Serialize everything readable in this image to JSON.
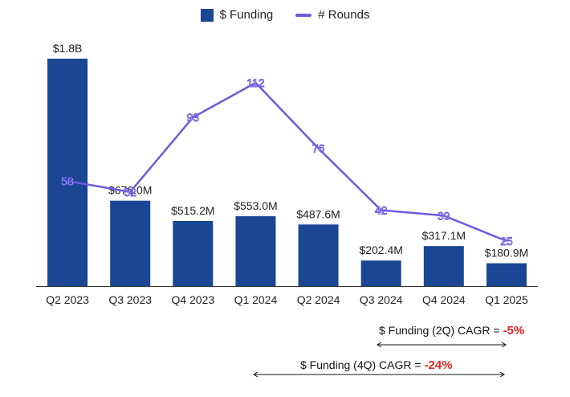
{
  "legend": {
    "bar_label": "$ Funding",
    "line_label": "# Rounds"
  },
  "chart_data": {
    "type": "bar+line",
    "categories": [
      "Q2 2023",
      "Q3 2023",
      "Q4 2023",
      "Q1 2024",
      "Q2 2024",
      "Q3 2024",
      "Q4 2024",
      "Q1 2025"
    ],
    "series": [
      {
        "name": "$ Funding",
        "type": "bar",
        "values": [
          1800,
          676.0,
          515.2,
          553.0,
          487.6,
          202.4,
          317.1,
          180.9
        ],
        "unit": "$M",
        "labels": [
          "$1.8B",
          "$676.0M",
          "$515.2M",
          "$553.0M",
          "$487.6M",
          "$202.4M",
          "$317.1M",
          "$180.9M"
        ]
      },
      {
        "name": "# Rounds",
        "type": "line",
        "values": [
          58,
          52,
          93,
          112,
          76,
          42,
          39,
          25
        ]
      }
    ],
    "colors": {
      "bar": "#1a4694",
      "line": "#6b5be0"
    }
  },
  "annotations": {
    "cagr_2q": {
      "label": "$ Funding (2Q) CAGR =",
      "value": "-5%"
    },
    "cagr_4q": {
      "label": "$ Funding (4Q) CAGR =",
      "value": "-24%"
    }
  }
}
